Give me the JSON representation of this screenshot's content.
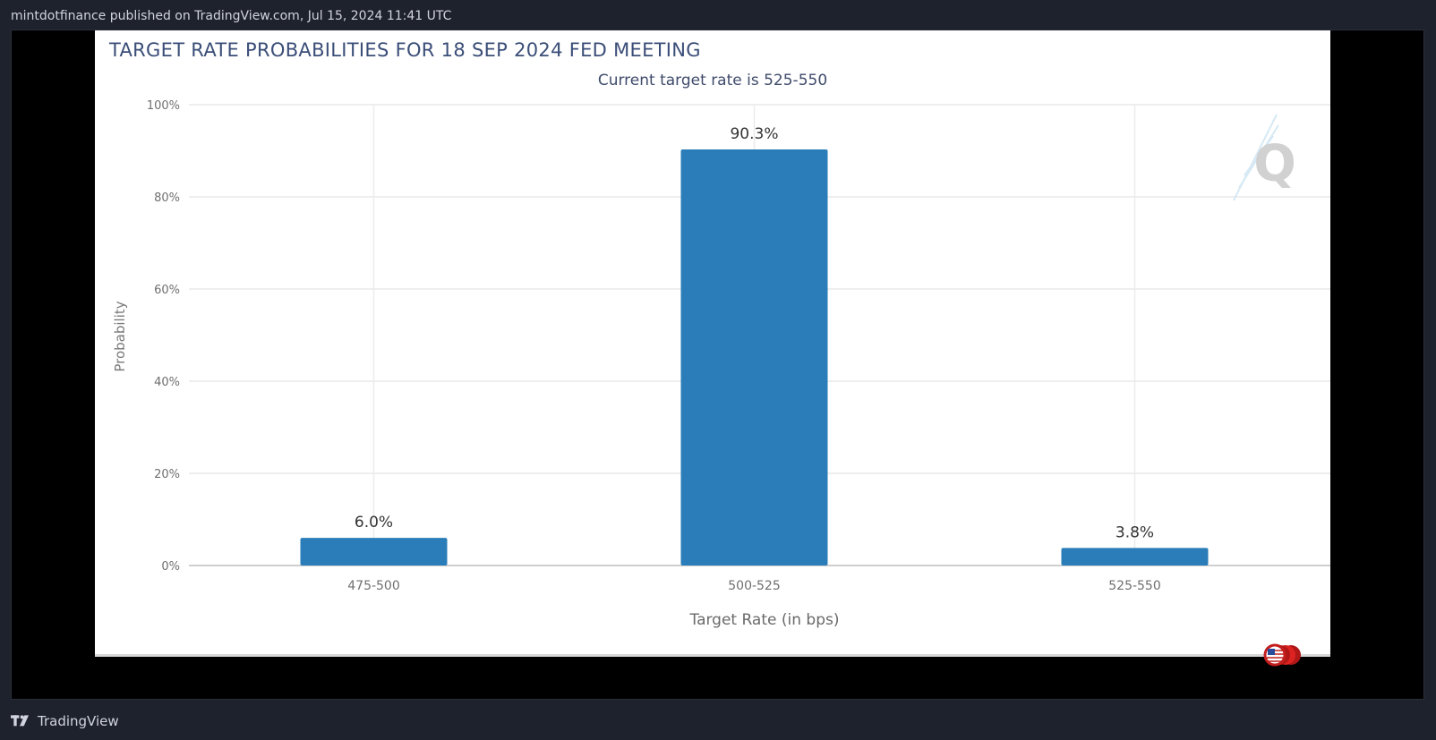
{
  "caption": "mintdotfinance published on TradingView.com, Jul 15, 2024 11:41 UTC",
  "footer": {
    "brand": "TradingView",
    "logo_icon": "tradingview-logo-icon"
  },
  "chart_data": {
    "type": "bar",
    "title": "TARGET RATE PROBABILITIES FOR 18 SEP 2024 FED MEETING",
    "subtitle": "Current target rate is 525-550",
    "xlabel": "Target Rate (in bps)",
    "ylabel": "Probability",
    "categories": [
      "475-500",
      "500-525",
      "525-550"
    ],
    "values": [
      6.0,
      90.3,
      3.8
    ],
    "value_labels": [
      "6.0%",
      "90.3%",
      "3.8%"
    ],
    "ylim": [
      0,
      100
    ],
    "yticks": [
      0,
      20,
      40,
      60,
      80,
      100
    ],
    "ytick_labels": [
      "0%",
      "20%",
      "40%",
      "60%",
      "80%",
      "100%"
    ],
    "grid": true,
    "bar_color": "#2a7db8",
    "watermark_icon": "cme-fedwatch-q-icon"
  },
  "colors": {
    "background": "#1e222d",
    "frame": "#000000",
    "title": "#3b4e78"
  }
}
